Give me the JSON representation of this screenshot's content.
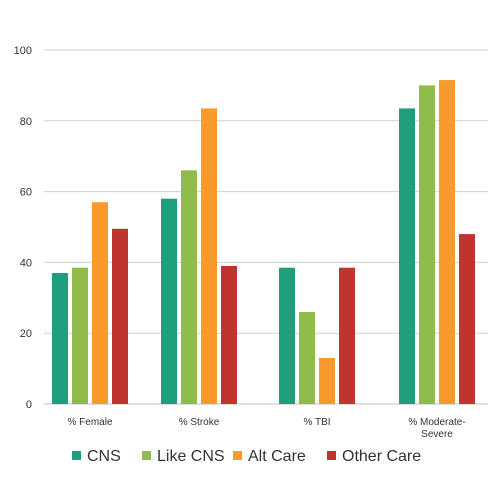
{
  "chart_data": {
    "type": "bar",
    "title": "",
    "xlabel": "",
    "ylabel": "",
    "categories": [
      [
        "% Female"
      ],
      [
        "% Stroke"
      ],
      [
        "% TBI"
      ],
      [
        "% Moderate-",
        "Severe"
      ]
    ],
    "series": [
      {
        "name": "CNS",
        "color": "#1f9e7e",
        "values": [
          37,
          58,
          38.5,
          83.5
        ]
      },
      {
        "name": "Like CNS",
        "color": "#8fbc4a",
        "values": [
          38.5,
          66,
          26,
          90
        ]
      },
      {
        "name": "Alt Care",
        "color": "#f89a2c",
        "values": [
          57,
          83.5,
          13,
          91.5
        ]
      },
      {
        "name": "Other Care",
        "color": "#c0342f",
        "values": [
          49.5,
          39,
          38.5,
          48
        ]
      }
    ],
    "ylim": [
      0,
      100
    ],
    "yticks": [
      0,
      20,
      40,
      60,
      80,
      100
    ],
    "grid": true,
    "legend_position": "bottom"
  }
}
